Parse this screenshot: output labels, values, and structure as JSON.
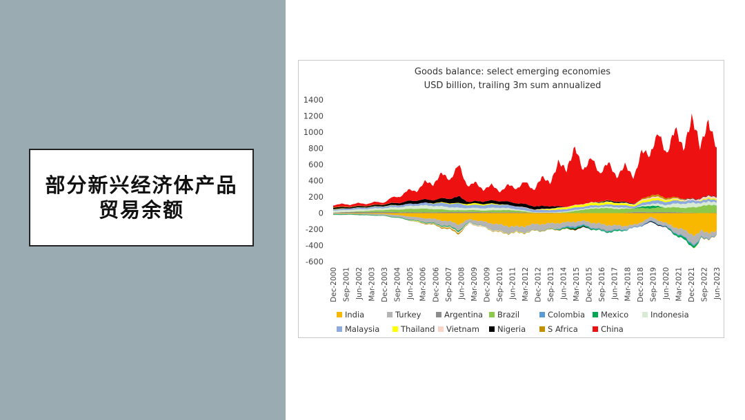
{
  "slide": {
    "heading": "部分新兴经济体产品贸易余额"
  },
  "chart_data": {
    "type": "area",
    "title": "Goods balance: select emerging economies",
    "subtitle": "USD billion, trailing 3m sum annualized",
    "ylim": [
      -600,
      1400
    ],
    "yticks": [
      1400,
      1200,
      1000,
      800,
      600,
      400,
      200,
      0,
      -200,
      -400,
      -600
    ],
    "xlim": [
      2000.92,
      2023.92
    ],
    "categories": [
      "Dec-2000",
      "Sep-2001",
      "Jun-2002",
      "Mar-2003",
      "Dec-2003",
      "Sep-2004",
      "Jun-2005",
      "Mar-2006",
      "Dec-2006",
      "Sep-2007",
      "Jun-2008",
      "Mar-2009",
      "Dec-2009",
      "Sep-2010",
      "Jun-2011",
      "Mar-2012",
      "Dec-2012",
      "Sep-2013",
      "Jun-2014",
      "Mar-2015",
      "Dec-2015",
      "Sep-2016",
      "Jun-2017",
      "Mar-2018",
      "Dec-2018",
      "Sep-2019",
      "Jun-2020",
      "Mar-2021",
      "Dec-2021",
      "Sep-2022",
      "Jun-2023"
    ],
    "x": [
      2000.92,
      2002,
      2003,
      2004,
      2005,
      2006,
      2007,
      2008,
      2008.5,
      2009.1,
      2010,
      2011,
      2012,
      2013,
      2014,
      2015,
      2015.5,
      2016,
      2017,
      2018,
      2019,
      2020,
      2021,
      2022,
      2022.7,
      2023,
      2023.92
    ],
    "series": [
      {
        "name": "India",
        "color": "#f9b800",
        "values": [
          -5,
          -8,
          -8,
          -12,
          -30,
          -55,
          -75,
          -110,
          -140,
          -75,
          -110,
          -150,
          -175,
          -140,
          -130,
          -115,
          -105,
          -100,
          -140,
          -160,
          -150,
          -50,
          -140,
          -220,
          -280,
          -230,
          -240
        ]
      },
      {
        "name": "Turkey",
        "color": "#b4b4b4",
        "values": [
          -10,
          -5,
          -12,
          -18,
          -30,
          -45,
          -55,
          -65,
          -70,
          -35,
          -60,
          -85,
          -70,
          -80,
          -70,
          -55,
          -50,
          -50,
          -65,
          -50,
          -30,
          -45,
          -40,
          -90,
          -110,
          -75,
          -50
        ]
      },
      {
        "name": "Argentina",
        "color": "#8c8c8c",
        "values": [
          5,
          15,
          15,
          15,
          12,
          12,
          11,
          14,
          15,
          15,
          12,
          10,
          12,
          3,
          5,
          -2,
          -2,
          3,
          -8,
          -4,
          15,
          12,
          14,
          7,
          3,
          -3,
          5
        ]
      },
      {
        "name": "Brazil",
        "color": "#8cc84b",
        "values": [
          -1,
          3,
          13,
          25,
          35,
          45,
          40,
          25,
          20,
          25,
          20,
          30,
          20,
          3,
          -5,
          15,
          30,
          45,
          65,
          55,
          45,
          50,
          60,
          60,
          70,
          95,
          95
        ]
      },
      {
        "name": "Colombia",
        "color": "#5b9bd5",
        "values": [
          2,
          0,
          0,
          0,
          0,
          0,
          0,
          0,
          0,
          0,
          0,
          0,
          0,
          0,
          0,
          -15,
          -15,
          -12,
          -8,
          -8,
          -10,
          -10,
          -10,
          -12,
          -15,
          -10,
          -8
        ]
      },
      {
        "name": "Mexico",
        "color": "#00a651",
        "values": [
          -8,
          -8,
          -8,
          -6,
          -8,
          -6,
          -8,
          -12,
          -15,
          -5,
          -4,
          -2,
          0,
          -2,
          -3,
          -15,
          -15,
          -13,
          -11,
          -14,
          5,
          35,
          -10,
          -30,
          -25,
          -5,
          5
        ]
      },
      {
        "name": "Indonesia",
        "color": "#d9ead3",
        "values": [
          25,
          25,
          25,
          25,
          30,
          40,
          40,
          35,
          30,
          25,
          30,
          30,
          15,
          5,
          5,
          10,
          10,
          10,
          15,
          20,
          0,
          25,
          35,
          55,
          50,
          40,
          40
        ]
      },
      {
        "name": "Malaysia",
        "color": "#8ea9db",
        "values": [
          15,
          18,
          20,
          22,
          25,
          28,
          35,
          45,
          50,
          35,
          40,
          40,
          35,
          30,
          30,
          30,
          30,
          30,
          25,
          30,
          25,
          40,
          40,
          35,
          30,
          30,
          30
        ]
      },
      {
        "name": "Thailand",
        "color": "#ffff00",
        "values": [
          5,
          2,
          3,
          3,
          3,
          -5,
          5,
          10,
          5,
          20,
          15,
          5,
          -5,
          0,
          15,
          25,
          25,
          30,
          30,
          25,
          20,
          30,
          20,
          5,
          -5,
          10,
          15
        ]
      },
      {
        "name": "Vietnam",
        "color": "#f8d5c8",
        "values": [
          -3,
          -3,
          -3,
          -3,
          -3,
          -3,
          -5,
          -15,
          -15,
          -10,
          -10,
          -8,
          5,
          5,
          5,
          5,
          5,
          5,
          5,
          5,
          10,
          20,
          10,
          15,
          15,
          25,
          25
        ]
      },
      {
        "name": "Nigeria",
        "color": "#000000",
        "values": [
          20,
          15,
          15,
          20,
          30,
          40,
          40,
          60,
          80,
          20,
          35,
          40,
          40,
          40,
          30,
          -5,
          -10,
          -10,
          10,
          15,
          5,
          -10,
          -5,
          5,
          5,
          5,
          5
        ]
      },
      {
        "name": "S Africa",
        "color": "#c09000",
        "values": [
          5,
          5,
          3,
          3,
          0,
          -5,
          -10,
          -15,
          -15,
          -3,
          -3,
          -8,
          -5,
          -5,
          -5,
          -5,
          -5,
          0,
          5,
          3,
          0,
          25,
          20,
          5,
          -3,
          -5,
          -5
        ]
      },
      {
        "name": "China",
        "color": "#ee1111",
        "values": [
          30,
          30,
          30,
          30,
          100,
          150,
          250,
          300,
          350,
          220,
          180,
          150,
          230,
          260,
          380,
          600,
          620,
          520,
          430,
          380,
          420,
          650,
          700,
          800,
          900,
          800,
          780
        ]
      }
    ],
    "legend": {
      "position": "bottom",
      "items": [
        "India",
        "Turkey",
        "Argentina",
        "Brazil",
        "Colombia",
        "Mexico",
        "Indonesia",
        "Malaysia",
        "Thailand",
        "Vietnam",
        "Nigeria",
        "S Africa",
        "China"
      ]
    }
  }
}
